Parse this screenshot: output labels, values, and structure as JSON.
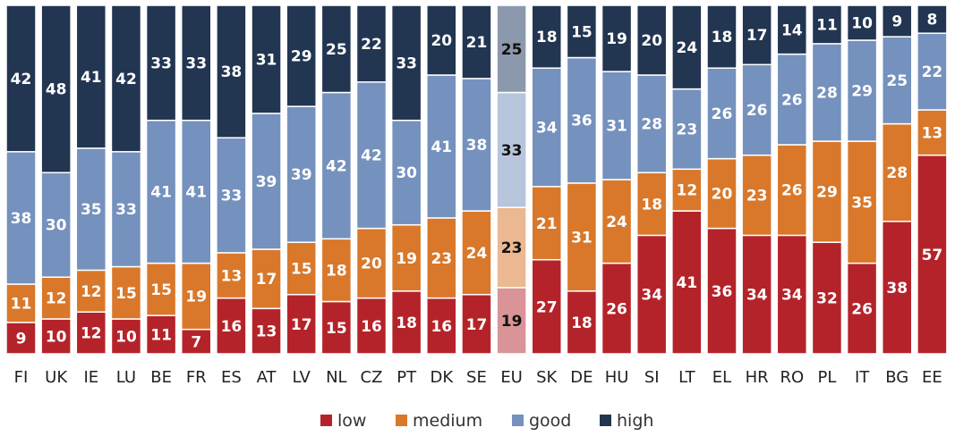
{
  "chart_data": {
    "type": "bar",
    "stacked": true,
    "categories": [
      "FI",
      "UK",
      "IE",
      "LU",
      "BE",
      "FR",
      "ES",
      "AT",
      "LV",
      "NL",
      "CZ",
      "PT",
      "DK",
      "SE",
      "EU",
      "SK",
      "DE",
      "HU",
      "SI",
      "LT",
      "EL",
      "HR",
      "RO",
      "PL",
      "IT",
      "BG",
      "EE"
    ],
    "series": [
      {
        "name": "low",
        "values": [
          9,
          10,
          12,
          10,
          11,
          7,
          16,
          13,
          17,
          15,
          16,
          18,
          16,
          17,
          19,
          27,
          18,
          26,
          34,
          41,
          36,
          34,
          34,
          32,
          26,
          38,
          57
        ]
      },
      {
        "name": "medium",
        "values": [
          11,
          12,
          12,
          15,
          15,
          19,
          13,
          17,
          15,
          18,
          20,
          19,
          23,
          24,
          23,
          21,
          31,
          24,
          18,
          12,
          20,
          23,
          26,
          29,
          35,
          28,
          13
        ]
      },
      {
        "name": "good",
        "values": [
          38,
          30,
          35,
          33,
          41,
          41,
          33,
          39,
          39,
          42,
          42,
          30,
          41,
          38,
          33,
          34,
          36,
          31,
          28,
          23,
          26,
          26,
          26,
          28,
          29,
          25,
          22
        ]
      },
      {
        "name": "high",
        "values": [
          42,
          48,
          41,
          42,
          33,
          33,
          38,
          31,
          29,
          25,
          22,
          33,
          20,
          21,
          25,
          18,
          15,
          19,
          20,
          24,
          18,
          17,
          14,
          11,
          10,
          9,
          8
        ]
      }
    ],
    "colors": {
      "low": "#b5232a",
      "medium": "#d9782a",
      "good": "#7591bd",
      "high": "#223551"
    },
    "highlight_category": "EU",
    "highlight_colors": {
      "low": "#d99497",
      "medium": "#ebb892",
      "good": "#b7c5dc",
      "high": "#8c99ac"
    },
    "ylim": [
      0,
      100
    ],
    "legend_position": "bottom",
    "grid": false
  }
}
